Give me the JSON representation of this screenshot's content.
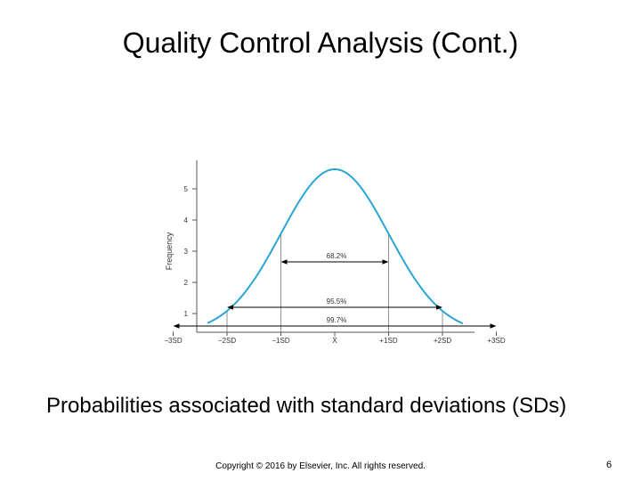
{
  "slide": {
    "title": "Quality Control Analysis (Cont.)",
    "caption": "Probabilities associated with standard deviations (SDs)",
    "copyright": "Copyright © 2016 by Elsevier, Inc. All rights reserved.",
    "page_number": "6"
  },
  "figure": {
    "ylabel": "Frequency",
    "yticks": [
      "1",
      "2",
      "3",
      "4",
      "5"
    ],
    "xticks": [
      "−3SD",
      "−2SD",
      "−1SD",
      "X̄",
      "+1SD",
      "+2SD",
      "+3SD"
    ],
    "ranges": [
      {
        "label": "68.2%",
        "from_sd": -1,
        "to_sd": 1
      },
      {
        "label": "95.5%",
        "from_sd": -2,
        "to_sd": 2
      },
      {
        "label": "99.7%",
        "from_sd": -3,
        "to_sd": 3
      }
    ],
    "curve_color": "#2aa5d4",
    "axis_color": "#555555"
  }
}
